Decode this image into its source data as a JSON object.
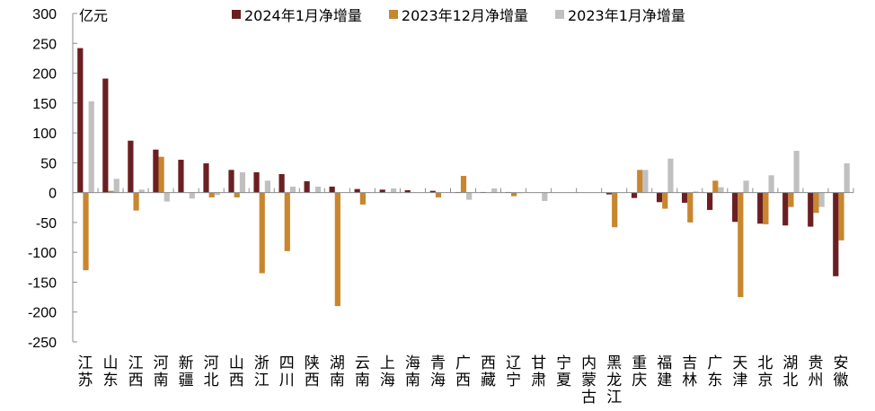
{
  "chart_data": {
    "type": "bar",
    "title": "",
    "ylabel": "亿元",
    "xlabel": "",
    "ylim": [
      -250,
      300
    ],
    "yticks": [
      300,
      250,
      200,
      150,
      100,
      50,
      0,
      -50,
      -100,
      -150,
      -200,
      -250
    ],
    "grid": false,
    "legend_position": "top",
    "categories": [
      "江苏",
      "山东",
      "江西",
      "河南",
      "新疆",
      "河北",
      "山西",
      "浙江",
      "四川",
      "陕西",
      "湖南",
      "云南",
      "上海",
      "海南",
      "青海",
      "广西",
      "西藏",
      "辽宁",
      "甘肃",
      "宁夏",
      "内蒙古",
      "黑龙江",
      "重庆",
      "福建",
      "吉林",
      "广东",
      "天津",
      "北京",
      "湖北",
      "贵州",
      "安徽"
    ],
    "series": [
      {
        "name": "2024年1月净增量",
        "color": "#6B1F22",
        "values": [
          242,
          191,
          87,
          72,
          55,
          49,
          38,
          34,
          31,
          19,
          10,
          6,
          5,
          4,
          3,
          1,
          1,
          1,
          0,
          0,
          0,
          -3,
          -9,
          -16,
          -17,
          -29,
          -49,
          -52,
          -55,
          -57,
          -140
        ]
      },
      {
        "name": "2023年12月净增量",
        "color": "#C8862E",
        "values": [
          -130,
          3,
          -30,
          60,
          0,
          -8,
          -8,
          -135,
          -98,
          0,
          -190,
          -20,
          0,
          0,
          -8,
          28,
          0,
          -6,
          0,
          0,
          0,
          -58,
          38,
          -27,
          -50,
          20,
          -175,
          -53,
          -24,
          -34,
          -80
        ]
      },
      {
        "name": "2023年1月净增量",
        "color": "#C0C0C0",
        "values": [
          153,
          23,
          5,
          -15,
          -10,
          -4,
          34,
          20,
          10,
          10,
          0,
          1,
          7,
          0,
          0,
          -12,
          7,
          -1,
          -14,
          0,
          0,
          0,
          38,
          57,
          2,
          9,
          20,
          29,
          70,
          -24,
          49
        ]
      }
    ]
  },
  "legend": [
    {
      "label": "2024年1月净增量",
      "color": "#6B1F22"
    },
    {
      "label": "2023年12月净增量",
      "color": "#C8862E"
    },
    {
      "label": "2023年1月净增量",
      "color": "#C0C0C0"
    }
  ],
  "axis": {
    "unit": "亿元",
    "axis_color": "#8C8C8C"
  }
}
